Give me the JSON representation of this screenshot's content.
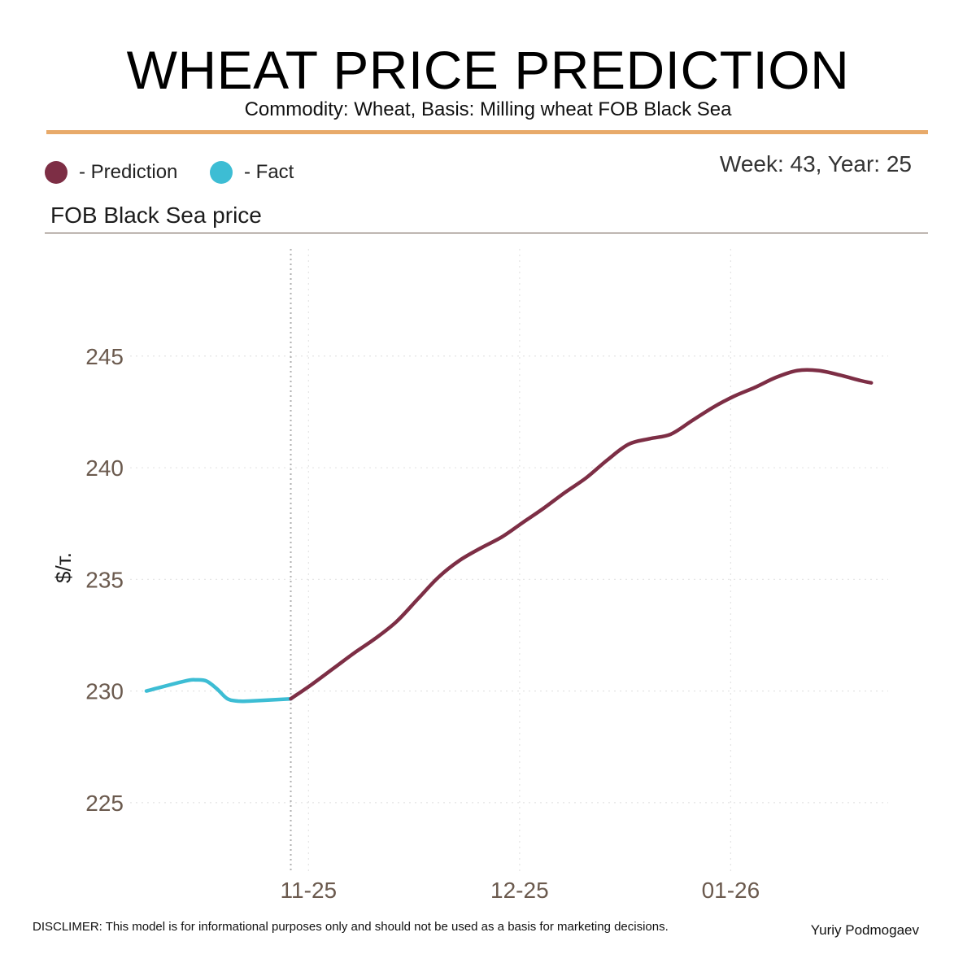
{
  "header": {
    "title": "WHEAT PRICE PREDICTION",
    "subtitle": "Commodity: Wheat, Basis: Milling wheat FOB Black Sea"
  },
  "legend": {
    "prediction_label": "- Prediction",
    "fact_label": "- Fact",
    "week_label": "Week: 43, Year: 25"
  },
  "section_label": "FOB Black Sea price",
  "colors": {
    "accent_rule": "#e8aa6a",
    "prediction": "#7d2e45",
    "fact": "#3dbdd4",
    "tick_text": "#6b5a4e",
    "grid": "#e4e4e4"
  },
  "chart_data": {
    "type": "line",
    "title": "FOB Black Sea price",
    "xlabel": "",
    "ylabel": "$/т.",
    "ylim": [
      221.9,
      249.8
    ],
    "yticks": [
      225,
      230,
      235,
      240,
      245
    ],
    "xlim": [
      -6.84,
      28.3
    ],
    "xticks": [
      {
        "label": "11-25",
        "x": 0.84
      },
      {
        "label": "12-25",
        "x": 10.84
      },
      {
        "label": "01-26",
        "x": 20.84
      }
    ],
    "divider_x": 0,
    "grid": true,
    "legend_position": "top-left",
    "series": [
      {
        "name": "Fact",
        "color": "#3dbdd4",
        "x": [
          -6.84,
          -5.0,
          -4.5,
          -4.0,
          -3.5,
          -3.0,
          -2.5,
          -2.0,
          -1.0,
          0
        ],
        "values": [
          230.0,
          230.45,
          230.5,
          230.45,
          230.1,
          229.65,
          229.55,
          229.55,
          229.6,
          229.65
        ]
      },
      {
        "name": "Prediction",
        "color": "#7d2e45",
        "x": [
          0,
          1,
          2,
          3,
          4,
          5,
          6,
          7,
          8,
          9,
          10,
          11,
          12,
          13,
          14,
          15,
          16,
          17,
          18,
          19,
          20,
          21,
          22,
          23,
          24,
          25,
          26,
          27,
          27.5
        ],
        "values": [
          229.65,
          230.3,
          231.0,
          231.7,
          232.35,
          233.1,
          234.1,
          235.1,
          235.85,
          236.4,
          236.9,
          237.55,
          238.2,
          238.9,
          239.55,
          240.35,
          241.05,
          241.3,
          241.5,
          242.1,
          242.7,
          243.2,
          243.6,
          244.05,
          244.35,
          244.35,
          244.15,
          243.9,
          243.8
        ]
      }
    ]
  },
  "footer": {
    "disclaimer": "DISCLIMER:  This model is for informational purposes only and should not be used as a basis for marketing decisions.",
    "author": "Yuriy Podmogaev"
  }
}
